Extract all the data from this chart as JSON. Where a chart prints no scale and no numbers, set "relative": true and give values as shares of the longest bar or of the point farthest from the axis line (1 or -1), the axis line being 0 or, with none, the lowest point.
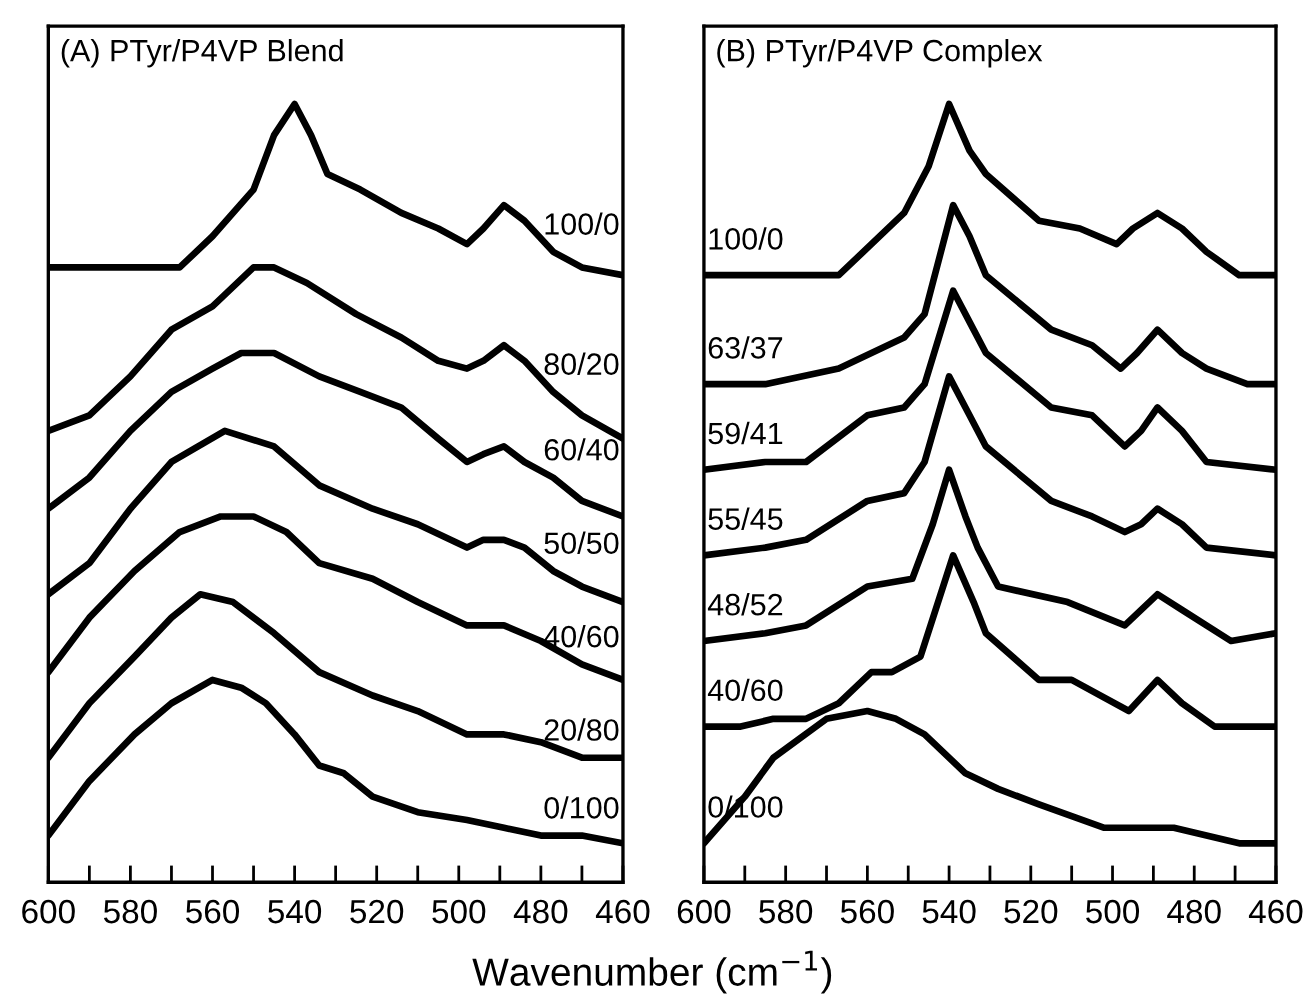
{
  "chart_data": [
    {
      "type": "line",
      "title": "(A) PTyr/P4VP Blend",
      "xlabel": "Wavenumber (cm$^{−1}$)",
      "relative": true,
      "xlim": [
        600,
        460
      ],
      "xticks": [
        600,
        {
          "value": 590,
          "label": null
        },
        580,
        {
          "value": 570,
          "label": null
        },
        560,
        {
          "value": 550,
          "label": null
        },
        540,
        {
          "value": 530,
          "label": null
        },
        520,
        {
          "value": 510,
          "label": null
        },
        500,
        {
          "value": 490,
          "label": null
        },
        480,
        {
          "value": 470,
          "label": null
        },
        460
      ],
      "legend": false,
      "grid": false,
      "tick_labels": "x",
      "series": [
        {
          "name": "100/0",
          "color": "#000000",
          "x": [
            600,
            590,
            580,
            568,
            560,
            550,
            545,
            540,
            536,
            532,
            524,
            514,
            505,
            498,
            494,
            489,
            484,
            477,
            470,
            460
          ],
          "values": [
            0.79,
            0.79,
            0.79,
            0.79,
            0.83,
            0.89,
            0.96,
            1.0,
            0.96,
            0.91,
            0.89,
            0.86,
            0.84,
            0.82,
            0.84,
            0.87,
            0.85,
            0.81,
            0.79,
            0.78
          ]
        },
        {
          "name": "80/20",
          "color": "#000000",
          "x": [
            600,
            590,
            580,
            570,
            560,
            550,
            545,
            537,
            525,
            514,
            505,
            498,
            494,
            489,
            484,
            477,
            470,
            460
          ],
          "values": [
            0.58,
            0.6,
            0.65,
            0.71,
            0.74,
            0.79,
            0.79,
            0.77,
            0.73,
            0.7,
            0.67,
            0.66,
            0.67,
            0.69,
            0.67,
            0.63,
            0.6,
            0.57
          ]
        },
        {
          "name": "60/40",
          "color": "#000000",
          "x": [
            600,
            590,
            580,
            570,
            560,
            553,
            545,
            534,
            524,
            514,
            505,
            498,
            494,
            489,
            484,
            477,
            470,
            460
          ],
          "values": [
            0.48,
            0.52,
            0.58,
            0.63,
            0.66,
            0.68,
            0.68,
            0.65,
            0.63,
            0.61,
            0.57,
            0.54,
            0.55,
            0.56,
            0.54,
            0.52,
            0.49,
            0.47
          ]
        },
        {
          "name": "50/50",
          "color": "#000000",
          "x": [
            600,
            590,
            580,
            570,
            557,
            545,
            534,
            521,
            510,
            498,
            494,
            489,
            484,
            477,
            470,
            460
          ],
          "values": [
            0.37,
            0.41,
            0.48,
            0.54,
            0.58,
            0.56,
            0.51,
            0.48,
            0.46,
            0.43,
            0.44,
            0.44,
            0.43,
            0.4,
            0.38,
            0.36
          ]
        },
        {
          "name": "40/60",
          "color": "#000000",
          "x": [
            600,
            590,
            579,
            568,
            558,
            550,
            542,
            534,
            521,
            510,
            498,
            489,
            480,
            470,
            460
          ],
          "values": [
            0.27,
            0.34,
            0.4,
            0.45,
            0.47,
            0.47,
            0.45,
            0.41,
            0.39,
            0.36,
            0.33,
            0.33,
            0.31,
            0.28,
            0.26
          ]
        },
        {
          "name": "20/80",
          "color": "#000000",
          "x": [
            600,
            590,
            579,
            570,
            563,
            555,
            545,
            534,
            521,
            510,
            498,
            489,
            480,
            470,
            460
          ],
          "values": [
            0.16,
            0.23,
            0.29,
            0.34,
            0.37,
            0.36,
            0.32,
            0.27,
            0.24,
            0.22,
            0.19,
            0.19,
            0.18,
            0.16,
            0.16
          ]
        },
        {
          "name": "0/100",
          "color": "#000000",
          "x": [
            600,
            590,
            579,
            570,
            560,
            553,
            547,
            540,
            534,
            528,
            521,
            510,
            498,
            489,
            480,
            470,
            460
          ],
          "values": [
            0.06,
            0.13,
            0.19,
            0.23,
            0.26,
            0.25,
            0.23,
            0.19,
            0.15,
            0.14,
            0.11,
            0.09,
            0.08,
            0.07,
            0.06,
            0.06,
            0.05
          ]
        }
      ]
    },
    {
      "type": "line",
      "title": "(B) PTyr/P4VP Complex",
      "relative": true,
      "xlim": [
        600,
        460
      ],
      "xticks": [
        600,
        {
          "value": 590,
          "label": null
        },
        580,
        {
          "value": 570,
          "label": null
        },
        560,
        {
          "value": 550,
          "label": null
        },
        540,
        {
          "value": 530,
          "label": null
        },
        520,
        {
          "value": 510,
          "label": null
        },
        500,
        {
          "value": 490,
          "label": null
        },
        480,
        {
          "value": 470,
          "label": null
        },
        460
      ],
      "legend": false,
      "grid": false,
      "tick_labels": "x",
      "series": [
        {
          "name": "100/0",
          "color": "#000000",
          "x": [
            600,
            585,
            567,
            551,
            545,
            540,
            535,
            531,
            518,
            508,
            499,
            495,
            489,
            483,
            477,
            469,
            460
          ],
          "values": [
            0.78,
            0.78,
            0.78,
            0.86,
            0.92,
            1.0,
            0.94,
            0.91,
            0.85,
            0.84,
            0.82,
            0.84,
            0.86,
            0.84,
            0.81,
            0.78,
            0.78
          ]
        },
        {
          "name": "63/37",
          "color": "#000000",
          "x": [
            600,
            585,
            567,
            551,
            546,
            539,
            535,
            531,
            515,
            505,
            498,
            494,
            489,
            483,
            477,
            467,
            460
          ],
          "values": [
            0.64,
            0.64,
            0.66,
            0.7,
            0.73,
            0.87,
            0.83,
            0.78,
            0.71,
            0.69,
            0.66,
            0.68,
            0.71,
            0.68,
            0.66,
            0.64,
            0.64
          ]
        },
        {
          "name": "59/41",
          "color": "#000000",
          "x": [
            600,
            585,
            575,
            560,
            551,
            546,
            539,
            535,
            531,
            515,
            505,
            497,
            493,
            489,
            483,
            477,
            460
          ],
          "values": [
            0.53,
            0.54,
            0.54,
            0.6,
            0.61,
            0.64,
            0.76,
            0.72,
            0.68,
            0.61,
            0.6,
            0.56,
            0.58,
            0.61,
            0.58,
            0.54,
            0.53
          ]
        },
        {
          "name": "55/45",
          "color": "#000000",
          "x": [
            600,
            585,
            575,
            560,
            551,
            546,
            540,
            535,
            531,
            515,
            505,
            497,
            493,
            489,
            483,
            477,
            460
          ],
          "values": [
            0.42,
            0.43,
            0.44,
            0.49,
            0.5,
            0.54,
            0.65,
            0.6,
            0.56,
            0.49,
            0.47,
            0.45,
            0.46,
            0.48,
            0.46,
            0.43,
            0.42
          ]
        },
        {
          "name": "48/52",
          "color": "#000000",
          "x": [
            600,
            585,
            575,
            560,
            549,
            544,
            540,
            536,
            533,
            528,
            511,
            497,
            493,
            489,
            483,
            471,
            460
          ],
          "values": [
            0.31,
            0.32,
            0.33,
            0.38,
            0.39,
            0.46,
            0.53,
            0.47,
            0.43,
            0.38,
            0.36,
            0.33,
            0.35,
            0.37,
            0.35,
            0.31,
            0.32
          ]
        },
        {
          "name": "40/60",
          "color": "#000000",
          "x": [
            600,
            591,
            583,
            575,
            567,
            559,
            554,
            547,
            539,
            534,
            531,
            518,
            510,
            496,
            489,
            483,
            475,
            460
          ],
          "values": [
            0.2,
            0.2,
            0.21,
            0.21,
            0.23,
            0.27,
            0.27,
            0.29,
            0.42,
            0.36,
            0.32,
            0.26,
            0.26,
            0.22,
            0.26,
            0.23,
            0.2,
            0.2
          ]
        },
        {
          "name": "0/100",
          "color": "#000000",
          "x": [
            600,
            590,
            583,
            570,
            560,
            553,
            546,
            536,
            528,
            518,
            502,
            485,
            469,
            460
          ],
          "values": [
            0.05,
            0.11,
            0.16,
            0.21,
            0.22,
            0.21,
            0.19,
            0.14,
            0.12,
            0.1,
            0.07,
            0.07,
            0.05,
            0.05
          ]
        }
      ]
    }
  ]
}
